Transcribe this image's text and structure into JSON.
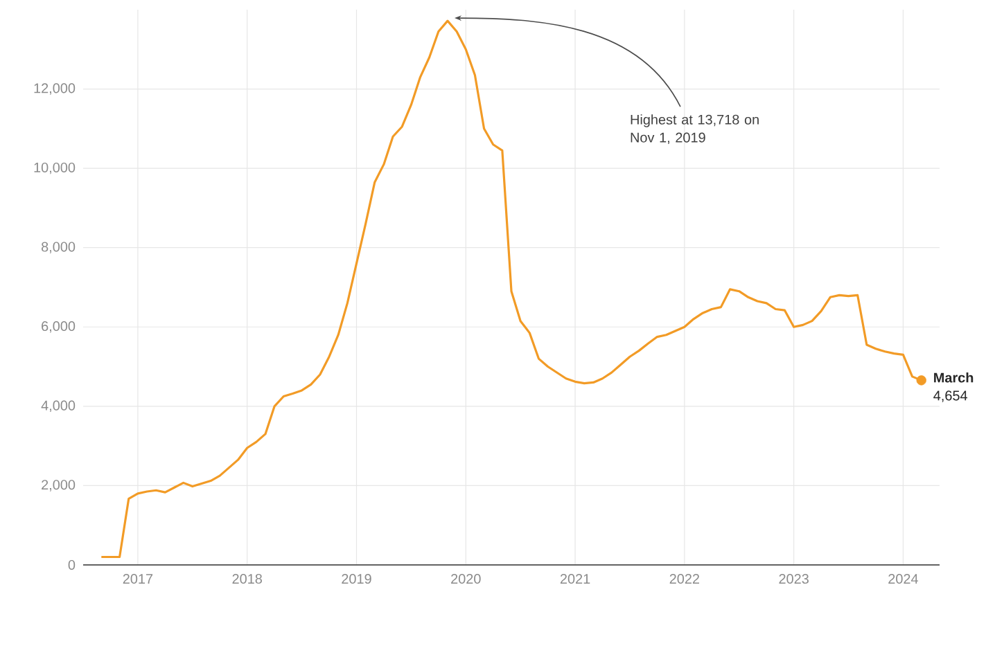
{
  "chart_data": {
    "type": "line",
    "x": [
      "2016-09",
      "2016-10",
      "2016-11",
      "2016-12",
      "2017-01",
      "2017-02",
      "2017-03",
      "2017-04",
      "2017-05",
      "2017-06",
      "2017-07",
      "2017-08",
      "2017-09",
      "2017-10",
      "2017-11",
      "2017-12",
      "2018-01",
      "2018-02",
      "2018-03",
      "2018-04",
      "2018-05",
      "2018-06",
      "2018-07",
      "2018-08",
      "2018-09",
      "2018-10",
      "2018-11",
      "2018-12",
      "2019-01",
      "2019-02",
      "2019-03",
      "2019-04",
      "2019-05",
      "2019-06",
      "2019-07",
      "2019-08",
      "2019-09",
      "2019-10",
      "2019-11",
      "2019-12",
      "2020-01",
      "2020-02",
      "2020-03",
      "2020-04",
      "2020-05",
      "2020-06",
      "2020-07",
      "2020-08",
      "2020-09",
      "2020-10",
      "2020-11",
      "2020-12",
      "2021-01",
      "2021-02",
      "2021-03",
      "2021-04",
      "2021-05",
      "2021-06",
      "2021-07",
      "2021-08",
      "2021-09",
      "2021-10",
      "2021-11",
      "2021-12",
      "2022-01",
      "2022-02",
      "2022-03",
      "2022-04",
      "2022-05",
      "2022-06",
      "2022-07",
      "2022-08",
      "2022-09",
      "2022-10",
      "2022-11",
      "2022-12",
      "2023-01",
      "2023-02",
      "2023-03",
      "2023-04",
      "2023-05",
      "2023-06",
      "2023-07",
      "2023-08",
      "2023-09",
      "2023-10",
      "2023-11",
      "2023-12",
      "2024-01",
      "2024-02",
      "2024-03"
    ],
    "series": [
      {
        "color": "#f29b26",
        "values": [
          200,
          200,
          200,
          1670,
          1800,
          1850,
          1880,
          1830,
          1950,
          2070,
          1980,
          2050,
          2120,
          2250,
          2450,
          2650,
          2950,
          3100,
          3300,
          4000,
          4250,
          4320,
          4400,
          4550,
          4800,
          5250,
          5800,
          6600,
          7600,
          8600,
          9650,
          10100,
          10800,
          11050,
          11600,
          12300,
          12800,
          13450,
          13718,
          13450,
          13000,
          12350,
          11000,
          10600,
          10450,
          6900,
          6150,
          5850,
          5200,
          5000,
          4850,
          4700,
          4620,
          4580,
          4600,
          4700,
          4850,
          5050,
          5250,
          5400,
          5580,
          5750,
          5800,
          5900,
          6000,
          6200,
          6350,
          6450,
          6500,
          6950,
          6900,
          6750,
          6650,
          6600,
          6450,
          6420,
          6000,
          6050,
          6150,
          6400,
          6750,
          6800,
          6780,
          6800,
          5550,
          5450,
          5380,
          5330,
          5300,
          4750,
          4654
        ]
      },
      {
        "type": "scatter",
        "color": "#f29b26",
        "x": [
          "2024-03"
        ],
        "values": [
          4654
        ]
      }
    ],
    "xlim": [
      "2016-07",
      "2024-05"
    ],
    "xticks": [
      "2017",
      "2018",
      "2019",
      "2020",
      "2021",
      "2022",
      "2023",
      "2024"
    ],
    "ylim": [
      0,
      14000
    ],
    "yticks": [
      0,
      {
        "value": 2000,
        "label": "2,000"
      },
      {
        "value": 4000,
        "label": "4,000"
      },
      {
        "value": 6000,
        "label": "6,000"
      },
      {
        "value": 8000,
        "label": "8,000"
      },
      {
        "value": 10000,
        "label": "10,000"
      },
      {
        "value": 12000,
        "label": "12,000"
      }
    ],
    "grid": true,
    "annotations": [
      "Highest at 13,718 on Nov 1, 2019",
      {
        "text": "**March** 4,654",
        "x": "2024-03",
        "y": 4654
      }
    ]
  }
}
